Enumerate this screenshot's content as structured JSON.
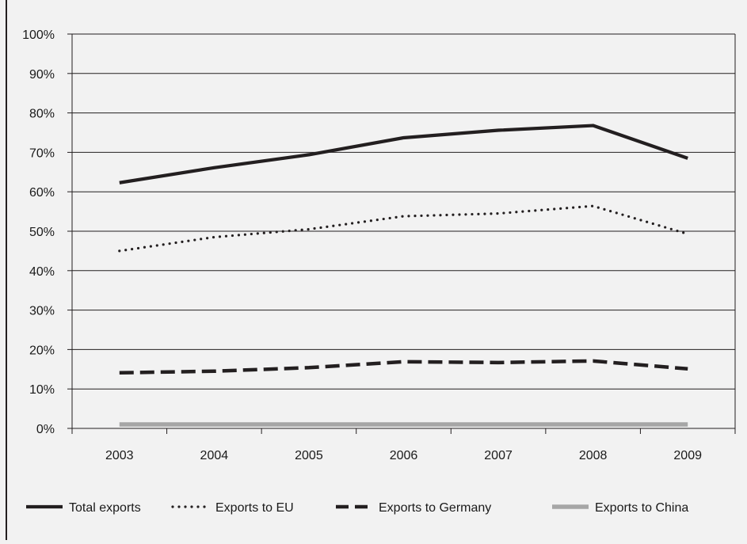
{
  "chart_data": {
    "type": "line",
    "x": [
      "2003",
      "2004",
      "2005",
      "2006",
      "2007",
      "2008",
      "2009"
    ],
    "ylim": [
      0,
      100
    ],
    "yticks": [
      "0%",
      "10%",
      "20%",
      "30%",
      "40%",
      "50%",
      "60%",
      "70%",
      "80%",
      "90%",
      "100%"
    ],
    "grid": true,
    "legend_position": "bottom",
    "series": [
      {
        "name": "Total exports",
        "style": "solid",
        "color": "#231f20",
        "values": [
          62.3,
          66.1,
          69.4,
          73.7,
          75.6,
          76.8,
          68.5
        ]
      },
      {
        "name": "Exports to EU",
        "style": "dotted",
        "color": "#231f20",
        "values": [
          45.0,
          48.5,
          50.5,
          53.8,
          54.5,
          56.4,
          49.3
        ]
      },
      {
        "name": "Exports to Germany",
        "style": "dashed",
        "color": "#231f20",
        "values": [
          14.1,
          14.5,
          15.4,
          16.9,
          16.7,
          17.1,
          15.1
        ]
      },
      {
        "name": "Exports to China",
        "style": "solid",
        "color": "#a6a6a6",
        "values": [
          1.0,
          1.0,
          1.0,
          1.0,
          1.0,
          1.0,
          1.0
        ]
      }
    ]
  }
}
